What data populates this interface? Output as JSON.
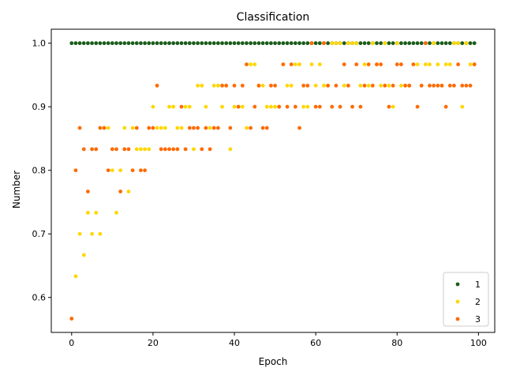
{
  "chart_data": {
    "type": "scatter",
    "title": "Classification",
    "xlabel": "Epoch",
    "ylabel": "Number",
    "xlim": [
      -5,
      104
    ],
    "ylim": [
      0.545,
      1.022
    ],
    "xticks": [
      0,
      20,
      40,
      60,
      80,
      100
    ],
    "xtick_labels": [
      "0",
      "20",
      "40",
      "60",
      "80",
      "100"
    ],
    "yticks": [
      0.6,
      0.7,
      0.8,
      0.9,
      1.0
    ],
    "ytick_labels": [
      "0.6",
      "0.7",
      "0.8",
      "0.9",
      "1.0"
    ],
    "grid": false,
    "legend_position": "bottom-right",
    "series": [
      {
        "name": "1",
        "color": "#1a5c1a",
        "x": [
          0,
          1,
          2,
          3,
          4,
          5,
          6,
          7,
          8,
          9,
          10,
          11,
          12,
          13,
          14,
          15,
          16,
          17,
          18,
          19,
          20,
          21,
          22,
          23,
          24,
          25,
          26,
          27,
          28,
          29,
          30,
          31,
          32,
          33,
          34,
          35,
          36,
          37,
          38,
          39,
          40,
          41,
          42,
          43,
          44,
          45,
          46,
          47,
          48,
          49,
          50,
          51,
          52,
          53,
          54,
          55,
          56,
          57,
          58,
          59,
          60,
          61,
          62,
          63,
          64,
          65,
          66,
          67,
          68,
          69,
          70,
          71,
          72,
          73,
          74,
          75,
          76,
          77,
          78,
          79,
          80,
          81,
          82,
          83,
          84,
          85,
          86,
          87,
          88,
          89,
          90,
          91,
          92,
          93,
          94,
          95,
          96,
          97,
          98,
          99
        ],
        "y": [
          1,
          1,
          1,
          1,
          1,
          1,
          1,
          1,
          1,
          1,
          1,
          1,
          1,
          1,
          1,
          1,
          1,
          1,
          1,
          1,
          1,
          1,
          1,
          1,
          1,
          1,
          1,
          1,
          1,
          1,
          1,
          1,
          1,
          1,
          1,
          1,
          1,
          1,
          1,
          1,
          1,
          1,
          1,
          1,
          1,
          1,
          1,
          1,
          1,
          1,
          1,
          1,
          1,
          1,
          1,
          1,
          1,
          1,
          1,
          1,
          1,
          1,
          1,
          1,
          1,
          1,
          1,
          1,
          1,
          1,
          1,
          1,
          1,
          1,
          1,
          1,
          1,
          1,
          1,
          1,
          1,
          1,
          1,
          1,
          1,
          1,
          1,
          1,
          1,
          1,
          1,
          1,
          1,
          1,
          1,
          1,
          1,
          1,
          1,
          1
        ]
      },
      {
        "name": "2",
        "color": "#ffd700",
        "x": [
          0,
          1,
          2,
          3,
          4,
          5,
          6,
          7,
          8,
          9,
          10,
          11,
          12,
          13,
          14,
          15,
          16,
          17,
          18,
          19,
          20,
          21,
          22,
          23,
          24,
          25,
          26,
          27,
          28,
          29,
          30,
          31,
          32,
          33,
          34,
          35,
          36,
          37,
          38,
          39,
          40,
          41,
          42,
          43,
          44,
          45,
          46,
          47,
          48,
          49,
          50,
          51,
          52,
          53,
          54,
          55,
          56,
          57,
          58,
          59,
          60,
          61,
          62,
          63,
          64,
          65,
          66,
          67,
          68,
          69,
          70,
          71,
          72,
          73,
          74,
          75,
          76,
          77,
          78,
          79,
          80,
          81,
          82,
          83,
          84,
          85,
          86,
          87,
          88,
          89,
          90,
          91,
          92,
          93,
          94,
          95,
          96,
          97,
          98,
          99
        ],
        "y": [
          0.5667,
          0.6333,
          0.7,
          0.6667,
          0.7333,
          0.7,
          0.7333,
          0.7,
          0.8667,
          0.8667,
          0.8,
          0.7333,
          0.8,
          0.8667,
          0.7667,
          0.8667,
          0.8333,
          0.8333,
          0.8333,
          0.8333,
          0.9,
          0.8667,
          0.8667,
          0.8667,
          0.9,
          0.9,
          0.8667,
          0.8667,
          0.9,
          0.9,
          0.8333,
          0.9333,
          0.9333,
          0.9,
          0.8667,
          0.9333,
          0.9333,
          0.9,
          0.9333,
          0.8333,
          0.9,
          0.9,
          0.9,
          0.8667,
          0.9667,
          0.9667,
          0.9333,
          0.9333,
          0.9,
          0.9,
          0.9,
          0.9,
          0.9667,
          0.9333,
          0.9333,
          0.9667,
          0.9667,
          0.9,
          0.9,
          0.9667,
          0.9333,
          0.9667,
          0.9333,
          0.9333,
          1.0,
          1.0,
          1.0,
          0.9333,
          1.0,
          1.0,
          1.0,
          0.9333,
          0.9667,
          0.9333,
          1.0,
          0.9667,
          0.9333,
          1.0,
          0.9333,
          0.9,
          1.0,
          0.9333,
          0.9333,
          0.9333,
          0.9667,
          0.9667,
          0.9333,
          0.9667,
          0.9667,
          1.0,
          0.9667,
          0.9333,
          0.9667,
          0.9667,
          1.0,
          1.0,
          0.9,
          1.0,
          0.9667,
          0.9667
        ]
      },
      {
        "name": "3",
        "color": "#ff6a00",
        "x": [
          0,
          1,
          2,
          3,
          4,
          5,
          6,
          7,
          8,
          9,
          10,
          11,
          12,
          13,
          14,
          15,
          16,
          17,
          18,
          19,
          20,
          21,
          22,
          23,
          24,
          25,
          26,
          27,
          28,
          29,
          30,
          31,
          32,
          33,
          34,
          35,
          36,
          37,
          38,
          39,
          40,
          41,
          42,
          43,
          44,
          45,
          46,
          47,
          48,
          49,
          50,
          51,
          52,
          53,
          54,
          55,
          56,
          57,
          58,
          59,
          60,
          61,
          62,
          63,
          64,
          65,
          66,
          67,
          68,
          69,
          70,
          71,
          72,
          73,
          74,
          75,
          76,
          77,
          78,
          79,
          80,
          81,
          82,
          83,
          84,
          85,
          86,
          87,
          88,
          89,
          90,
          91,
          92,
          93,
          94,
          95,
          96,
          97,
          98,
          99
        ],
        "y": [
          0.5667,
          0.8,
          0.8667,
          0.8333,
          0.7667,
          0.8333,
          0.8333,
          0.8667,
          0.8667,
          0.8,
          0.8333,
          0.8333,
          0.7667,
          0.8333,
          0.8333,
          0.8,
          0.8667,
          0.8,
          0.8,
          0.8667,
          0.8667,
          0.9333,
          0.8333,
          0.8333,
          0.8333,
          0.8333,
          0.8333,
          0.9,
          0.8333,
          0.8667,
          0.8667,
          0.8667,
          0.8333,
          0.8667,
          0.8333,
          0.8667,
          0.8667,
          0.9333,
          0.9333,
          0.8667,
          0.9333,
          0.9,
          0.9333,
          0.9667,
          0.8667,
          0.9,
          0.9333,
          0.8667,
          0.8667,
          0.9333,
          0.9333,
          0.9,
          0.9667,
          0.9,
          0.9667,
          0.9,
          0.8667,
          0.9333,
          0.9333,
          1.0,
          0.9,
          0.9,
          1.0,
          0.9333,
          0.9,
          0.9333,
          0.9,
          0.9667,
          0.9333,
          0.9,
          0.9667,
          0.9,
          0.9333,
          0.9667,
          0.9333,
          0.9667,
          0.9667,
          0.9333,
          0.9,
          0.9333,
          0.9667,
          0.9667,
          0.9333,
          0.9333,
          0.9667,
          0.9,
          0.9333,
          1.0,
          0.9333,
          0.9333,
          0.9333,
          0.9333,
          0.9,
          0.9333,
          0.9333,
          0.9667,
          0.9333,
          0.9333,
          0.9333,
          0.9667
        ]
      }
    ]
  }
}
